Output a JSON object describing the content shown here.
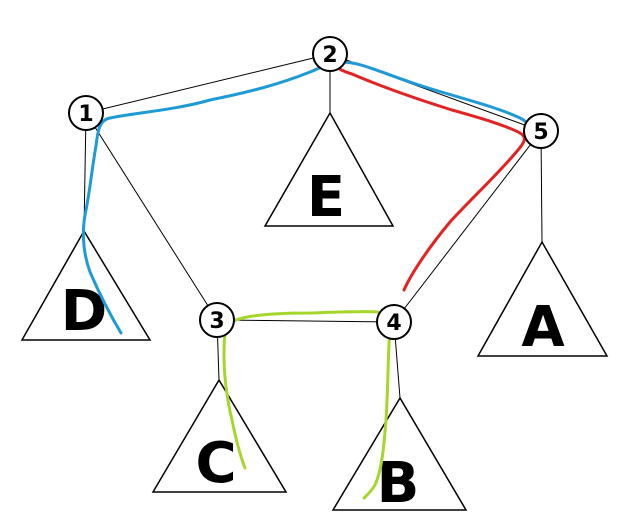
{
  "nodes": [
    {
      "id": "n1",
      "label": "1"
    },
    {
      "id": "n2",
      "label": "2"
    },
    {
      "id": "n3",
      "label": "3"
    },
    {
      "id": "n4",
      "label": "4"
    },
    {
      "id": "n5",
      "label": "5"
    }
  ],
  "subtrees": [
    {
      "id": "tD",
      "label": "D",
      "parent": "1"
    },
    {
      "id": "tE",
      "label": "E",
      "parent": "2"
    },
    {
      "id": "tC",
      "label": "C",
      "parent": "3"
    },
    {
      "id": "tB",
      "label": "B",
      "parent": "4"
    },
    {
      "id": "tA",
      "label": "A",
      "parent": "5"
    }
  ],
  "edges": [
    [
      "1",
      "2"
    ],
    [
      "2",
      "5"
    ],
    [
      "1",
      "3"
    ],
    [
      "3",
      "4"
    ],
    [
      "4",
      "5"
    ]
  ],
  "highlighted_paths": [
    {
      "color": "#1e9ad6",
      "route": [
        "D",
        "1",
        "2",
        "5"
      ]
    },
    {
      "color": "#e52222",
      "route": [
        "2",
        "5",
        "4"
      ]
    },
    {
      "color": "#a5d62a",
      "route": [
        "C",
        "3",
        "4",
        "B"
      ]
    }
  ]
}
